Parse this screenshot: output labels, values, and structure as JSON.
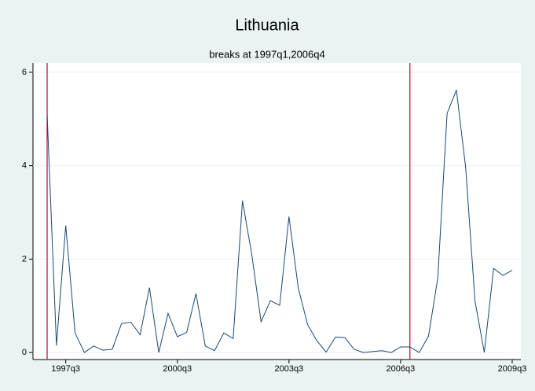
{
  "chart_data": {
    "type": "line",
    "title": "Lithuania",
    "subtitle": "breaks at 1997q1,2006q4",
    "x": [
      "1997q1",
      "1997q2",
      "1997q3",
      "1997q4",
      "1998q1",
      "1998q2",
      "1998q3",
      "1998q4",
      "1999q1",
      "1999q2",
      "1999q3",
      "1999q4",
      "2000q1",
      "2000q2",
      "2000q3",
      "2000q4",
      "2001q1",
      "2001q2",
      "2001q3",
      "2001q4",
      "2002q1",
      "2002q2",
      "2002q3",
      "2002q4",
      "2003q1",
      "2003q2",
      "2003q3",
      "2003q4",
      "2004q1",
      "2004q2",
      "2004q3",
      "2004q4",
      "2005q1",
      "2005q2",
      "2005q3",
      "2005q4",
      "2006q1",
      "2006q2",
      "2006q3",
      "2006q4",
      "2007q1",
      "2007q2",
      "2007q3",
      "2007q4",
      "2008q1",
      "2008q2",
      "2008q3",
      "2008q4",
      "2009q1",
      "2009q2",
      "2009q3"
    ],
    "series": [
      {
        "color": "#1a476f",
        "values": [
          5.1,
          0.15,
          2.72,
          0.42,
          0.0,
          0.14,
          0.05,
          0.07,
          0.62,
          0.65,
          0.38,
          1.39,
          0.0,
          0.84,
          0.34,
          0.43,
          1.26,
          0.14,
          0.04,
          0.42,
          0.3,
          3.25,
          2.1,
          0.66,
          1.11,
          1.01,
          2.91,
          1.38,
          0.6,
          0.25,
          0.01,
          0.33,
          0.32,
          0.07,
          0.0,
          0.02,
          0.04,
          0.0,
          0.12,
          0.12,
          0.0,
          0.35,
          1.6,
          5.12,
          5.62,
          3.95,
          1.1,
          0.0,
          1.8,
          1.65,
          1.76
        ]
      }
    ],
    "xticks": [
      "1997q3",
      "2000q3",
      "2003q3",
      "2006q3",
      "2009q3"
    ],
    "break_lines": {
      "color": "#c10534",
      "at": [
        "1997q1",
        "2006q4"
      ]
    },
    "ylim": [
      -0.15,
      6.2
    ],
    "yticks": [
      0,
      2,
      4,
      6
    ],
    "grid": true
  }
}
